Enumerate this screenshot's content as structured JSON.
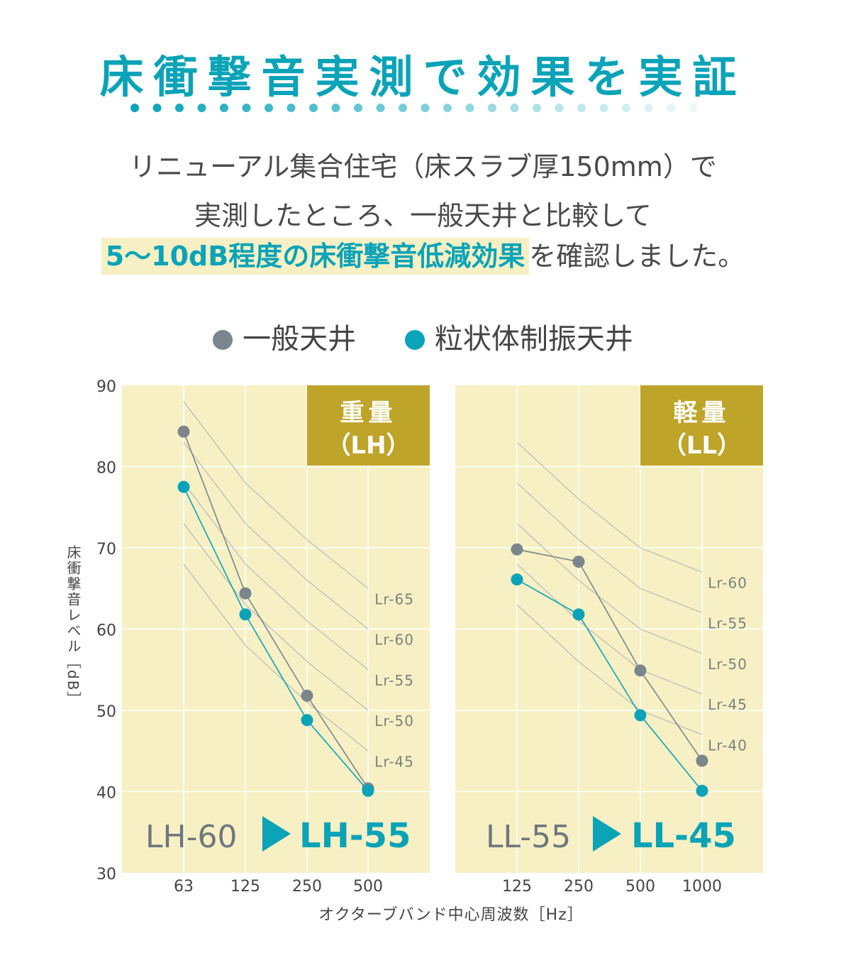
{
  "header": {
    "title": "床衝撃音実測で効果を実証",
    "intro_line1": "リニューアル集合住宅（床スラブ厚150mm）で",
    "intro_line2": "実測したところ、一般天井と比較して",
    "intro_highlight": "5〜10dB程度の床衝撃音低減効果",
    "intro_line3_rest": "を確認しました。"
  },
  "legend": {
    "items": [
      {
        "label": "一般天井",
        "color": "#7b858c"
      },
      {
        "label": "粒状体制振天井",
        "color": "#0aa3b8"
      }
    ]
  },
  "colors": {
    "panel_bg": "#f7f0c4",
    "badge_bg": "#bfa42a",
    "general": "#7b858c",
    "damping": "#0aa3b8",
    "curve": "#b8b8b8"
  },
  "chart_data": {
    "type": "line",
    "ylabel": "床衝撃音レベル［dB］",
    "xlabel": "オクターブバンド中心周波数［Hz］",
    "ylim": [
      30,
      90
    ],
    "yticks": [
      30,
      40,
      50,
      60,
      70,
      80,
      90
    ],
    "panels": [
      {
        "title_line1": "重量",
        "title_line2": "（LH）",
        "categories": [
          "63",
          "125",
          "250",
          "500"
        ],
        "series": [
          {
            "name": "一般天井",
            "values": [
              84.3,
              64.4,
              51.8,
              40.4
            ]
          },
          {
            "name": "粒状体制振天井",
            "values": [
              77.5,
              61.8,
              48.8,
              40.1
            ]
          }
        ],
        "curves": [
          {
            "label": "Lr-65",
            "values": [
              88,
              78,
              71,
              65
            ]
          },
          {
            "label": "Lr-60",
            "values": [
              83,
              73,
              66,
              60
            ]
          },
          {
            "label": "Lr-55",
            "values": [
              78,
              68,
              61,
              55
            ]
          },
          {
            "label": "Lr-50",
            "values": [
              73,
              63,
              56,
              50
            ]
          },
          {
            "label": "Lr-45",
            "values": [
              68,
              58,
              51,
              45
            ]
          }
        ],
        "result_before": "LH-60",
        "result_after": "LH-55"
      },
      {
        "title_line1": "軽量",
        "title_line2": "（LL）",
        "categories": [
          "125",
          "250",
          "500",
          "1000"
        ],
        "series": [
          {
            "name": "一般天井",
            "values": [
              69.8,
              68.3,
              54.9,
              43.8
            ]
          },
          {
            "name": "粒状体制振天井",
            "values": [
              66.1,
              61.8,
              49.4,
              40.1
            ]
          }
        ],
        "curves": [
          {
            "label": "Lr-60",
            "values": [
              83,
              76,
              70,
              67
            ]
          },
          {
            "label": "Lr-55",
            "values": [
              78,
              71,
              65,
              62
            ]
          },
          {
            "label": "Lr-50",
            "values": [
              73,
              66,
              60,
              57
            ]
          },
          {
            "label": "Lr-45",
            "values": [
              68,
              61,
              55,
              52
            ]
          },
          {
            "label": "Lr-40",
            "values": [
              63,
              56,
              50,
              47
            ]
          }
        ],
        "result_before": "LL-55",
        "result_after": "LL-45"
      }
    ]
  }
}
